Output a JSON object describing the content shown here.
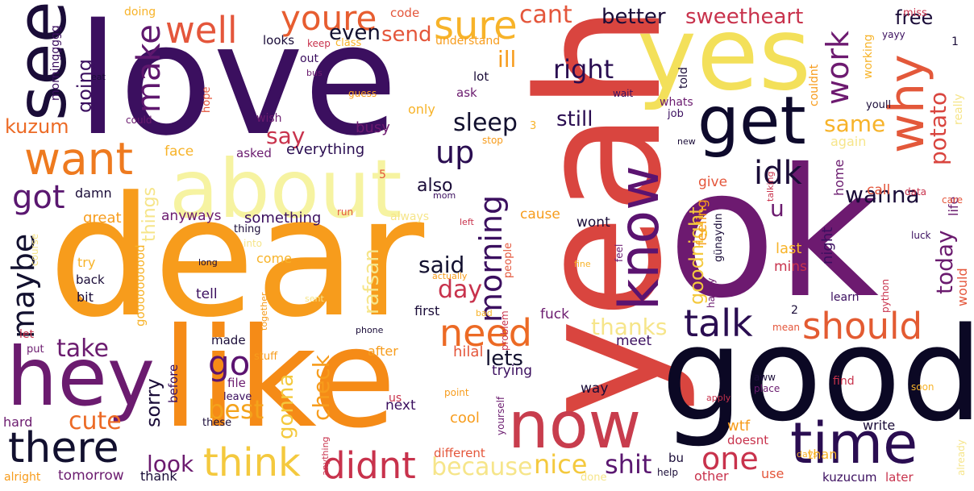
{
  "words": [
    {
      "text": "love",
      "color": "#3b0f5f",
      "vertical": false
    },
    {
      "text": "dear",
      "color": "#f79c1c",
      "vertical": false
    },
    {
      "text": "yeah",
      "color": "#d9453f",
      "vertical": true
    },
    {
      "text": "ok",
      "color": "#6d1a70",
      "vertical": false
    },
    {
      "text": "good",
      "color": "#0b0824",
      "vertical": false
    },
    {
      "text": "like",
      "color": "#f58b17",
      "vertical": false
    },
    {
      "text": "yes",
      "color": "#f3e05a",
      "vertical": false
    },
    {
      "text": "about",
      "color": "#f6f3a1",
      "vertical": false
    },
    {
      "text": "see",
      "color": "#1a0c38",
      "vertical": true
    },
    {
      "text": "hey",
      "color": "#6b1b6f",
      "vertical": false
    },
    {
      "text": "now",
      "color": "#c83d4d",
      "vertical": false
    },
    {
      "text": "time",
      "color": "#2a0d51",
      "vertical": false
    },
    {
      "text": "know",
      "color": "#5b1370",
      "vertical": true
    },
    {
      "text": "get",
      "color": "#0e0a2c",
      "vertical": false
    },
    {
      "text": "why",
      "color": "#e3583a",
      "vertical": true
    },
    {
      "text": "want",
      "color": "#ee7a1f",
      "vertical": false
    },
    {
      "text": "there",
      "color": "#12102f",
      "vertical": false
    },
    {
      "text": "think",
      "color": "#f4c93e",
      "vertical": false
    },
    {
      "text": "didnt",
      "color": "#c8324c",
      "vertical": false
    },
    {
      "text": "should",
      "color": "#e35b32",
      "vertical": false
    },
    {
      "text": "talk",
      "color": "#2a0d51",
      "vertical": false
    },
    {
      "text": "need",
      "color": "#ec6a25",
      "vertical": false
    },
    {
      "text": "make",
      "color": "#5f176e",
      "vertical": true
    },
    {
      "text": "youre",
      "color": "#e75d30",
      "vertical": false
    },
    {
      "text": "sure",
      "color": "#f7b329",
      "vertical": false
    },
    {
      "text": "well",
      "color": "#e4563b",
      "vertical": false
    },
    {
      "text": "maybe",
      "color": "#12102f",
      "vertical": true
    },
    {
      "text": "got",
      "color": "#5a1770",
      "vertical": false
    },
    {
      "text": "go",
      "color": "#5b1370",
      "vertical": false
    },
    {
      "text": "idk",
      "color": "#1a0c38",
      "vertical": false
    },
    {
      "text": "work",
      "color": "#6d1a70",
      "vertical": true
    },
    {
      "text": "morning",
      "color": "#3b0f5f",
      "vertical": true
    },
    {
      "text": "up",
      "color": "#2a0d51",
      "vertical": false
    },
    {
      "text": "one",
      "color": "#c8324c",
      "vertical": false
    },
    {
      "text": "shit",
      "color": "#5a1770",
      "vertical": false
    },
    {
      "text": "nice",
      "color": "#f4c93e",
      "vertical": false
    },
    {
      "text": "because",
      "color": "#f6e58a",
      "vertical": false
    },
    {
      "text": "best",
      "color": "#f4a31b",
      "vertical": false
    },
    {
      "text": "cute",
      "color": "#ec6a25",
      "vertical": false
    },
    {
      "text": "look",
      "color": "#6b1b6f",
      "vertical": false
    },
    {
      "text": "take",
      "color": "#6b1b6f",
      "vertical": false
    },
    {
      "text": "said",
      "color": "#12102f",
      "vertical": false
    },
    {
      "text": "sleep",
      "color": "#12102f",
      "vertical": false
    },
    {
      "text": "right",
      "color": "#2a0d51",
      "vertical": false
    },
    {
      "text": "better",
      "color": "#1a0c38",
      "vertical": false
    },
    {
      "text": "sweetheart",
      "color": "#c8324c",
      "vertical": false
    },
    {
      "text": "cant",
      "color": "#e4563b",
      "vertical": false
    },
    {
      "text": "free",
      "color": "#1a0c38",
      "vertical": false
    },
    {
      "text": "wanna",
      "color": "#1a0c38",
      "vertical": false
    },
    {
      "text": "potato",
      "color": "#d9453f",
      "vertical": true
    },
    {
      "text": "same",
      "color": "#f7b329",
      "vertical": false
    },
    {
      "text": "say",
      "color": "#c8324c",
      "vertical": false
    },
    {
      "text": "still",
      "color": "#2a0d51",
      "vertical": false
    },
    {
      "text": "even",
      "color": "#12102f",
      "vertical": false
    },
    {
      "text": "send",
      "color": "#e4563b",
      "vertical": false
    },
    {
      "text": "kuzum",
      "color": "#ec6a25",
      "vertical": false
    },
    {
      "text": "going",
      "color": "#3b0f5f",
      "vertical": true
    },
    {
      "text": "ill",
      "color": "#f79c1c",
      "vertical": false
    },
    {
      "text": "thanks",
      "color": "#f6e58a",
      "vertical": false
    },
    {
      "text": "today",
      "color": "#6b1b6f",
      "vertical": true
    },
    {
      "text": "lets",
      "color": "#12102f",
      "vertical": false
    },
    {
      "text": "day",
      "color": "#c8324c",
      "vertical": false
    },
    {
      "text": "check",
      "color": "#f79c1c",
      "vertical": true
    },
    {
      "text": "gonna",
      "color": "#f4c93e",
      "vertical": true
    },
    {
      "text": "rafsan",
      "color": "#f6e58a",
      "vertical": true
    },
    {
      "text": "sorry",
      "color": "#1a0c38",
      "vertical": true
    },
    {
      "text": "goodnight",
      "color": "#f4c93e",
      "vertical": true
    },
    {
      "text": "u",
      "color": "#6b1b6f",
      "vertical": false
    },
    {
      "text": "also",
      "color": "#1a0c38",
      "vertical": false
    },
    {
      "text": "things",
      "color": "#f6e58a",
      "vertical": true
    },
    {
      "text": "busy",
      "color": "#6d1a70",
      "vertical": false
    },
    {
      "text": "everything",
      "color": "#2a0d51",
      "vertical": false
    },
    {
      "text": "something",
      "color": "#3b0f5f",
      "vertical": false
    },
    {
      "text": "anyways",
      "color": "#6b1b6f",
      "vertical": false
    },
    {
      "text": "great",
      "color": "#f79c1c",
      "vertical": false
    },
    {
      "text": "damn",
      "color": "#1a0c38",
      "vertical": false
    },
    {
      "text": "face",
      "color": "#f7b329",
      "vertical": false
    },
    {
      "text": "asked",
      "color": "#6b1b6f",
      "vertical": false
    },
    {
      "text": "cause",
      "color": "#f79c1c",
      "vertical": false
    },
    {
      "text": "wont",
      "color": "#1a0c38",
      "vertical": false
    },
    {
      "text": "night",
      "color": "#3b0f5f",
      "vertical": true
    },
    {
      "text": "last",
      "color": "#f7b329",
      "vertical": false
    },
    {
      "text": "mins",
      "color": "#c8324c",
      "vertical": false
    },
    {
      "text": "would",
      "color": "#e4563b",
      "vertical": true
    },
    {
      "text": "feeling",
      "color": "#f79c1c",
      "vertical": true
    },
    {
      "text": "give",
      "color": "#e4563b",
      "vertical": false
    },
    {
      "text": "call",
      "color": "#e4563b",
      "vertical": false
    },
    {
      "text": "home",
      "color": "#6b1b6f",
      "vertical": true
    },
    {
      "text": "life",
      "color": "#6b1b6f",
      "vertical": true
    },
    {
      "text": "again",
      "color": "#f6e58a",
      "vertical": false
    },
    {
      "text": "hilal",
      "color": "#e4563b",
      "vertical": false
    },
    {
      "text": "after",
      "color": "#f79c1c",
      "vertical": false
    },
    {
      "text": "trying",
      "color": "#3b0f5f",
      "vertical": false
    },
    {
      "text": "way",
      "color": "#1a0c38",
      "vertical": false
    },
    {
      "text": "meet",
      "color": "#3b0f5f",
      "vertical": false
    },
    {
      "text": "wtf",
      "color": "#f79c1c",
      "vertical": false
    },
    {
      "text": "doesnt",
      "color": "#c8324c",
      "vertical": false
    },
    {
      "text": "use",
      "color": "#e4563b",
      "vertical": false
    },
    {
      "text": "than",
      "color": "#f7b329",
      "vertical": false
    },
    {
      "text": "later",
      "color": "#c8324c",
      "vertical": false
    },
    {
      "text": "kuzucum",
      "color": "#3b0f5f",
      "vertical": false
    },
    {
      "text": "write",
      "color": "#1a0c38",
      "vertical": false
    },
    {
      "text": "bu",
      "color": "#1a0c38",
      "vertical": false
    },
    {
      "text": "other",
      "color": "#c8324c",
      "vertical": false
    },
    {
      "text": "cool",
      "color": "#f79c1c",
      "vertical": false
    },
    {
      "text": "different",
      "color": "#e4563b",
      "vertical": false
    },
    {
      "text": "next",
      "color": "#3b0f5f",
      "vertical": false
    },
    {
      "text": "fuck",
      "color": "#6b1b6f",
      "vertical": false
    },
    {
      "text": "first",
      "color": "#1a0c38",
      "vertical": false
    },
    {
      "text": "tell",
      "color": "#3b0f5f",
      "vertical": false
    },
    {
      "text": "back",
      "color": "#1a0c38",
      "vertical": false
    },
    {
      "text": "bit",
      "color": "#1a0c38",
      "vertical": false
    },
    {
      "text": "try",
      "color": "#f7b329",
      "vertical": false
    },
    {
      "text": "come",
      "color": "#f7b329",
      "vertical": false
    },
    {
      "text": "made",
      "color": "#1a0c38",
      "vertical": false
    },
    {
      "text": "before",
      "color": "#3b0f5f",
      "vertical": true
    },
    {
      "text": "hard",
      "color": "#6b1b6f",
      "vertical": false
    },
    {
      "text": "tomorrow",
      "color": "#6b1b6f",
      "vertical": false
    },
    {
      "text": "alright",
      "color": "#f79c1c",
      "vertical": false
    },
    {
      "text": "thank",
      "color": "#1a0c38",
      "vertical": false
    },
    {
      "text": "goooooooood",
      "color": "#f7b329",
      "vertical": true
    },
    {
      "text": "morninggggg",
      "color": "#3b0f5f",
      "vertical": true
    },
    {
      "text": "let",
      "color": "#c8324c",
      "vertical": false
    },
    {
      "text": "put",
      "color": "#6b1b6f",
      "vertical": false
    },
    {
      "text": "stuff",
      "color": "#f79c1c",
      "vertical": false
    },
    {
      "text": "file",
      "color": "#6b1b6f",
      "vertical": false
    },
    {
      "text": "leave",
      "color": "#3b0f5f",
      "vertical": false
    },
    {
      "text": "these",
      "color": "#1a0c38",
      "vertical": false
    },
    {
      "text": "us",
      "color": "#c8324c",
      "vertical": false
    },
    {
      "text": "point",
      "color": "#f79c1c",
      "vertical": false
    },
    {
      "text": "lot",
      "color": "#1a0c38",
      "vertical": false
    },
    {
      "text": "ask",
      "color": "#6b1b6f",
      "vertical": false
    },
    {
      "text": "only",
      "color": "#f7b329",
      "vertical": false
    },
    {
      "text": "guess",
      "color": "#f79c1c",
      "vertical": false
    },
    {
      "text": "wish",
      "color": "#6b1b6f",
      "vertical": false
    },
    {
      "text": "out",
      "color": "#3b0f5f",
      "vertical": false
    },
    {
      "text": "hope",
      "color": "#e4563b",
      "vertical": true
    },
    {
      "text": "looks",
      "color": "#1a0c38",
      "vertical": false
    },
    {
      "text": "keep",
      "color": "#c8324c",
      "vertical": false
    },
    {
      "text": "class",
      "color": "#f7b329",
      "vertical": false
    },
    {
      "text": "code",
      "color": "#e4563b",
      "vertical": false
    },
    {
      "text": "understand",
      "color": "#f79c1c",
      "vertical": false
    },
    {
      "text": "doing",
      "color": "#f7b329",
      "vertical": false
    },
    {
      "text": "miss",
      "color": "#c8324c",
      "vertical": false
    },
    {
      "text": "yayy",
      "color": "#3b0f5f",
      "vertical": false
    },
    {
      "text": "working",
      "color": "#f7b329",
      "vertical": true
    },
    {
      "text": "couldnt",
      "color": "#f79c1c",
      "vertical": true
    },
    {
      "text": "told",
      "color": "#1a0c38",
      "vertical": true
    },
    {
      "text": "whats",
      "color": "#6b1b6f",
      "vertical": false
    },
    {
      "text": "job",
      "color": "#3b0f5f",
      "vertical": false
    },
    {
      "text": "youll",
      "color": "#1a0c38",
      "vertical": false
    },
    {
      "text": "really",
      "color": "#f6e58a",
      "vertical": true
    },
    {
      "text": "wait",
      "color": "#3b0f5f",
      "vertical": false
    },
    {
      "text": "new",
      "color": "#1a0c38",
      "vertical": false
    },
    {
      "text": "talking",
      "color": "#c8324c",
      "vertical": true
    },
    {
      "text": "data",
      "color": "#c8324c",
      "vertical": false
    },
    {
      "text": "care",
      "color": "#e4563b",
      "vertical": false
    },
    {
      "text": "luck",
      "color": "#3b0f5f",
      "vertical": false
    },
    {
      "text": "python",
      "color": "#c8324c",
      "vertical": true
    },
    {
      "text": "learn",
      "color": "#3b0f5f",
      "vertical": false
    },
    {
      "text": "happy",
      "color": "#6b1b6f",
      "vertical": true
    },
    {
      "text": "günaydın",
      "color": "#1a0c38",
      "vertical": true
    },
    {
      "text": "feel",
      "color": "#6b1b6f",
      "vertical": true
    },
    {
      "text": "fine",
      "color": "#f7b329",
      "vertical": false
    },
    {
      "text": "mean",
      "color": "#e4563b",
      "vertical": false
    },
    {
      "text": "find",
      "color": "#c8324c",
      "vertical": false
    },
    {
      "text": "aww",
      "color": "#1a0c38",
      "vertical": false
    },
    {
      "text": "place",
      "color": "#6b1b6f",
      "vertical": false
    },
    {
      "text": "soon",
      "color": "#f7b329",
      "vertical": false
    },
    {
      "text": "apply",
      "color": "#c8324c",
      "vertical": false
    },
    {
      "text": "yourself",
      "color": "#6b1b6f",
      "vertical": true
    },
    {
      "text": "problem",
      "color": "#c8324c",
      "vertical": true
    },
    {
      "text": "bad",
      "color": "#f7b329",
      "vertical": false
    },
    {
      "text": "phone",
      "color": "#1a0c38",
      "vertical": false
    },
    {
      "text": "together",
      "color": "#f79c1c",
      "vertical": true
    },
    {
      "text": "sent",
      "color": "#f6e58a",
      "vertical": false
    },
    {
      "text": "actually",
      "color": "#f79c1c",
      "vertical": false
    },
    {
      "text": "people",
      "color": "#e4563b",
      "vertical": true
    },
    {
      "text": "always",
      "color": "#f6e58a",
      "vertical": false
    },
    {
      "text": "left",
      "color": "#c8324c",
      "vertical": false
    },
    {
      "text": "mom",
      "color": "#3b0f5f",
      "vertical": false
    },
    {
      "text": "stop",
      "color": "#f79c1c",
      "vertical": false
    },
    {
      "text": "run",
      "color": "#e4563b",
      "vertical": false
    },
    {
      "text": "thing",
      "color": "#1a0c38",
      "vertical": false
    },
    {
      "text": "into",
      "color": "#f6e58a",
      "vertical": false
    },
    {
      "text": "stupid",
      "color": "#f79c1c",
      "vertical": false
    },
    {
      "text": "long",
      "color": "#1a0c38",
      "vertical": false
    },
    {
      "text": "course",
      "color": "#f6e58a",
      "vertical": true
    },
    {
      "text": "could",
      "color": "#6b1b6f",
      "vertical": false
    },
    {
      "text": "eat",
      "color": "#1a0c38",
      "vertical": false
    },
    {
      "text": "bus",
      "color": "#6b1b6f",
      "vertical": false
    },
    {
      "text": "done",
      "color": "#f6e58a",
      "vertical": false
    },
    {
      "text": "help",
      "color": "#1a0c38",
      "vertical": false
    },
    {
      "text": "days",
      "color": "#f7b329",
      "vertical": false
    },
    {
      "text": "already",
      "color": "#f6e58a",
      "vertical": true
    },
    {
      "text": "anything",
      "color": "#c8324c",
      "vertical": true
    },
    {
      "text": "1",
      "color": "#1a0c38",
      "vertical": false
    },
    {
      "text": "2",
      "color": "#1a0c38",
      "vertical": false
    },
    {
      "text": "3",
      "color": "#f7b329",
      "vertical": false
    },
    {
      "text": "5",
      "color": "#e4563b",
      "vertical": false
    }
  ]
}
